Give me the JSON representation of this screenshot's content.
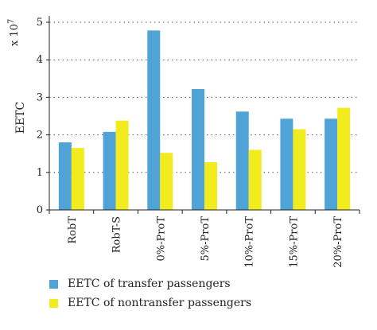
{
  "chart_data": {
    "type": "bar",
    "title": "",
    "xlabel": "",
    "ylabel": "EETC",
    "scale_label": "x 10",
    "scale_exponent": "7",
    "ylim": [
      0,
      5
    ],
    "yticks": [
      "0",
      "1",
      "2",
      "3",
      "4",
      "5"
    ],
    "grid": "horizontal-dotted",
    "legend_position": "bottom",
    "categories": [
      "RobT",
      "RobT-S",
      "0%-ProT",
      "5%-ProT",
      "10%-ProT",
      "15%-ProT",
      "20%-ProT"
    ],
    "series": [
      {
        "name": "EETC of transfer passengers",
        "color": "#4fa3d6",
        "values": [
          1.8,
          2.08,
          4.78,
          3.22,
          2.62,
          2.43,
          2.43
        ]
      },
      {
        "name": "EETC of nontransfer passengers",
        "color": "#f2ec1e",
        "values": [
          1.65,
          2.38,
          1.52,
          1.27,
          1.6,
          2.15,
          2.72
        ]
      }
    ]
  }
}
